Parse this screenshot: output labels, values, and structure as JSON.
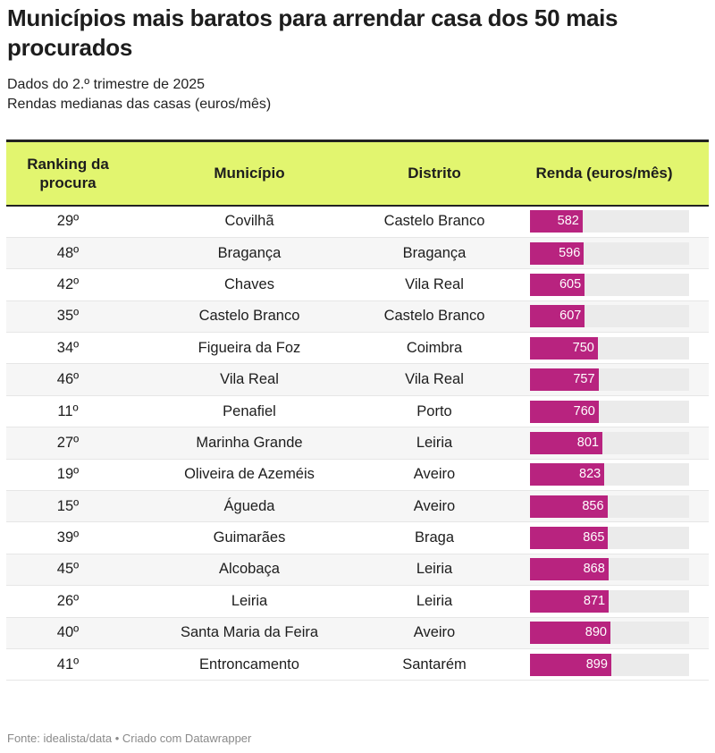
{
  "title": "Municípios mais baratos para arrendar casa dos 50 mais procurados",
  "subtitle1": "Dados do 2.º trimestre de 2025",
  "subtitle2": "Rendas medianas das casas (euros/mês)",
  "footer": "Fonte: idealista/data • Criado com Datawrapper",
  "colors": {
    "header_bg": "#e2f56f",
    "bar": "#b8237f",
    "track": "#ebebeb"
  },
  "chart_data": {
    "type": "table",
    "columns": [
      "Ranking da procura",
      "Município",
      "Distrito",
      "Renda (euros/mês)"
    ],
    "bar_scale_max": 1760,
    "rows": [
      {
        "rank": "29º",
        "municipio": "Covilhã",
        "distrito": "Castelo Branco",
        "renda": 582
      },
      {
        "rank": "48º",
        "municipio": "Bragança",
        "distrito": "Bragança",
        "renda": 596
      },
      {
        "rank": "42º",
        "municipio": "Chaves",
        "distrito": "Vila Real",
        "renda": 605
      },
      {
        "rank": "35º",
        "municipio": "Castelo Branco",
        "distrito": "Castelo Branco",
        "renda": 607
      },
      {
        "rank": "34º",
        "municipio": "Figueira da Foz",
        "distrito": "Coimbra",
        "renda": 750
      },
      {
        "rank": "46º",
        "municipio": "Vila Real",
        "distrito": "Vila Real",
        "renda": 757
      },
      {
        "rank": "11º",
        "municipio": "Penafiel",
        "distrito": "Porto",
        "renda": 760
      },
      {
        "rank": "27º",
        "municipio": "Marinha Grande",
        "distrito": "Leiria",
        "renda": 801
      },
      {
        "rank": "19º",
        "municipio": "Oliveira de Azeméis",
        "distrito": "Aveiro",
        "renda": 823
      },
      {
        "rank": "15º",
        "municipio": "Águeda",
        "distrito": "Aveiro",
        "renda": 856
      },
      {
        "rank": "39º",
        "municipio": "Guimarães",
        "distrito": "Braga",
        "renda": 865
      },
      {
        "rank": "45º",
        "municipio": "Alcobaça",
        "distrito": "Leiria",
        "renda": 868
      },
      {
        "rank": "26º",
        "municipio": "Leiria",
        "distrito": "Leiria",
        "renda": 871
      },
      {
        "rank": "40º",
        "municipio": "Santa Maria da Feira",
        "distrito": "Aveiro",
        "renda": 890
      },
      {
        "rank": "41º",
        "municipio": "Entroncamento",
        "distrito": "Santarém",
        "renda": 899
      }
    ]
  }
}
